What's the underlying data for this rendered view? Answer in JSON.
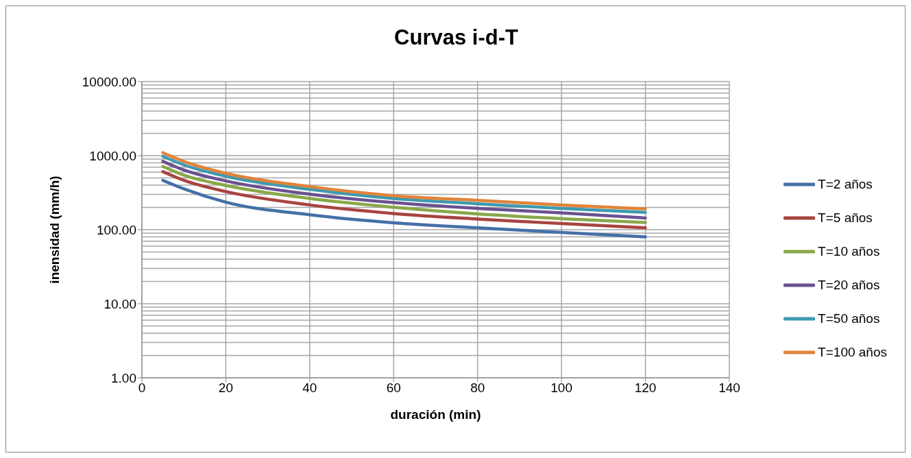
{
  "chart_data": {
    "type": "line",
    "title": "Curvas i-d-T",
    "xlabel": "duración (min)",
    "ylabel": "inensidad (mm/h)",
    "x": [
      5,
      10,
      20,
      40,
      60,
      80,
      100,
      120
    ],
    "series": [
      {
        "name": "T=2 años",
        "color": "#4570a8",
        "values": [
          463,
          356,
          235,
          159,
          124,
          106,
          92,
          80
        ]
      },
      {
        "name": "T=5 años",
        "color": "#a84440",
        "values": [
          608,
          465,
          327,
          216,
          165,
          139,
          121,
          106
        ]
      },
      {
        "name": "T=10 años",
        "color": "#88a848",
        "values": [
          715,
          545,
          396,
          264,
          201,
          163,
          141,
          125
        ]
      },
      {
        "name": "T=20 años",
        "color": "#6a5190",
        "values": [
          837,
          640,
          456,
          302,
          232,
          194,
          169,
          144
        ]
      },
      {
        "name": "T=50 años",
        "color": "#3e9ab0",
        "values": [
          979,
          750,
          527,
          351,
          264,
          224,
          194,
          171
        ]
      },
      {
        "name": "T=100 años",
        "color": "#e0843a",
        "values": [
          1096,
          837,
          577,
          382,
          288,
          249,
          216,
          191
        ]
      }
    ],
    "xlim": [
      0,
      140
    ],
    "xticks": [
      0,
      20,
      40,
      60,
      80,
      100,
      120,
      140
    ],
    "ylim": [
      1,
      10000
    ],
    "yticks": [
      {
        "value": 1,
        "label": "1.00"
      },
      {
        "value": 10,
        "label": "10.00"
      },
      {
        "value": 100,
        "label": "100.00"
      },
      {
        "value": 1000,
        "label": "1000.00"
      },
      {
        "value": 10000,
        "label": "10000.00"
      }
    ],
    "log": true,
    "grid": true,
    "legend": "right",
    "marker": "none",
    "line_style": "solid"
  }
}
